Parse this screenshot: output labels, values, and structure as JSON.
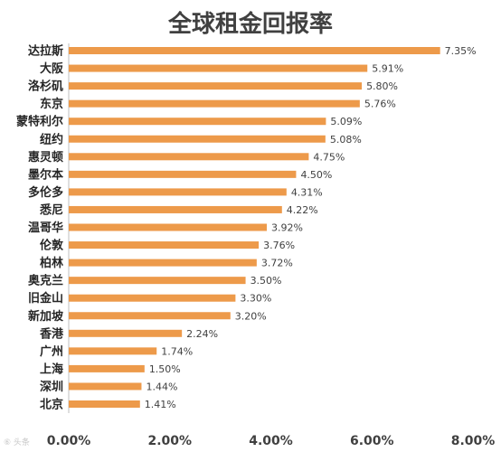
{
  "title": "全球租金回报率",
  "watermark": "⑥ 头条",
  "chart_data": {
    "type": "bar",
    "orientation": "horizontal",
    "title": "全球租金回报率",
    "categories": [
      "达拉斯",
      "大阪",
      "洛杉矶",
      "东京",
      "蒙特利尔",
      "纽约",
      "惠灵顿",
      "墨尔本",
      "多伦多",
      "悉尼",
      "温哥华",
      "伦敦",
      "柏林",
      "奥克兰",
      "旧金山",
      "新加坡",
      "香港",
      "广州",
      "上海",
      "深圳",
      "北京"
    ],
    "values": [
      7.35,
      5.91,
      5.8,
      5.76,
      5.09,
      5.08,
      4.75,
      4.5,
      4.31,
      4.22,
      3.92,
      3.76,
      3.72,
      3.5,
      3.3,
      3.2,
      2.24,
      1.74,
      1.5,
      1.44,
      1.41
    ],
    "value_labels": [
      "7.35%",
      "5.91%",
      "5.80%",
      "5.76%",
      "5.09%",
      "5.08%",
      "4.75%",
      "4.50%",
      "4.31%",
      "4.22%",
      "3.92%",
      "3.76%",
      "3.72%",
      "3.50%",
      "3.30%",
      "3.20%",
      "2.24%",
      "1.74%",
      "1.50%",
      "1.44%",
      "1.41%"
    ],
    "xlim": [
      0,
      8
    ],
    "ticks": [
      0,
      2,
      4,
      6,
      8
    ],
    "tick_labels": [
      "0.00%",
      "2.00%",
      "4.00%",
      "6.00%",
      "8.00%"
    ],
    "grid": false,
    "bar_color": "#ED9A4A",
    "axis_color": "#BFBFBF"
  }
}
